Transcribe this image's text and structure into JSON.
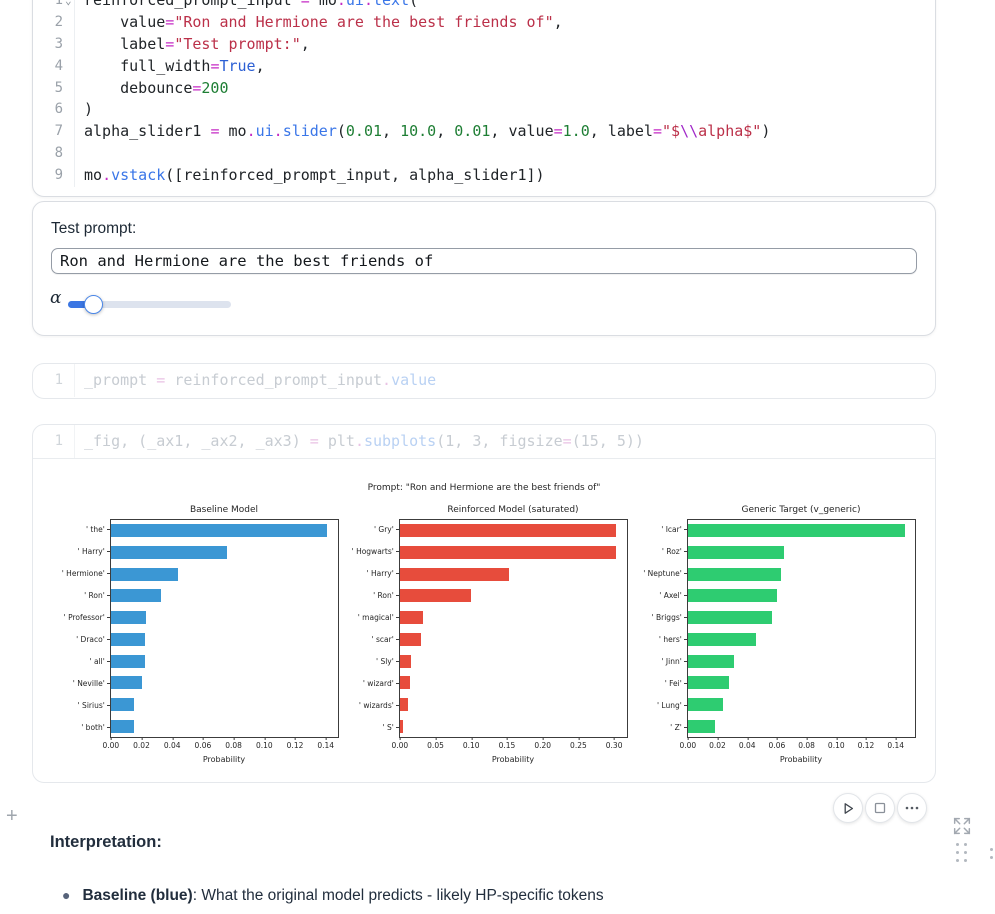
{
  "cells": {
    "cell1": {
      "lines": [
        {
          "n": "1",
          "fold": "⌄",
          "segs": [
            [
              "reinforced_prompt_input ",
              "d"
            ],
            [
              "= ",
              "op"
            ],
            [
              "mo",
              "d"
            ],
            [
              ".",
              "op"
            ],
            [
              "ui",
              "fn"
            ],
            [
              ".",
              "op"
            ],
            [
              "text",
              "fn"
            ],
            [
              "(",
              "d"
            ]
          ]
        },
        {
          "n": "2",
          "segs": [
            [
              "    value",
              "d"
            ],
            [
              "=",
              "op"
            ],
            [
              "\"Ron and Hermione are the best friends of\"",
              "str"
            ],
            [
              ",",
              "d"
            ]
          ]
        },
        {
          "n": "3",
          "segs": [
            [
              "    label",
              "d"
            ],
            [
              "=",
              "op"
            ],
            [
              "\"Test prompt:\"",
              "str"
            ],
            [
              ",",
              "d"
            ]
          ]
        },
        {
          "n": "4",
          "segs": [
            [
              "    full_width",
              "d"
            ],
            [
              "=",
              "op"
            ],
            [
              "True",
              "kw"
            ],
            [
              ",",
              "d"
            ]
          ]
        },
        {
          "n": "5",
          "segs": [
            [
              "    debounce",
              "d"
            ],
            [
              "=",
              "op"
            ],
            [
              "200",
              "num"
            ]
          ]
        },
        {
          "n": "6",
          "segs": [
            [
              ")",
              "d"
            ]
          ]
        },
        {
          "n": "7",
          "segs": [
            [
              "alpha_slider1 ",
              "d"
            ],
            [
              "= ",
              "op"
            ],
            [
              "mo",
              "d"
            ],
            [
              ".",
              "op"
            ],
            [
              "ui",
              "fn"
            ],
            [
              ".",
              "op"
            ],
            [
              "slider",
              "fn"
            ],
            [
              "(",
              "d"
            ],
            [
              "0.01",
              "num"
            ],
            [
              ", ",
              "d"
            ],
            [
              "10.0",
              "num"
            ],
            [
              ", ",
              "d"
            ],
            [
              "0.01",
              "num"
            ],
            [
              ", value",
              "d"
            ],
            [
              "=",
              "op"
            ],
            [
              "1.0",
              "num"
            ],
            [
              ", label",
              "d"
            ],
            [
              "=",
              "op"
            ],
            [
              "\"$",
              "str"
            ],
            [
              "\\\\",
              "esc"
            ],
            [
              "alpha$\"",
              "str"
            ],
            [
              ")",
              "d"
            ]
          ]
        },
        {
          "n": "8",
          "segs": []
        },
        {
          "n": "9",
          "segs": [
            [
              "mo",
              "d"
            ],
            [
              ".",
              "op"
            ],
            [
              "vstack",
              "fn"
            ],
            [
              "([reinforced_prompt_input, alpha_slider1])",
              "d"
            ]
          ]
        }
      ]
    },
    "cell2": {
      "lines": [
        {
          "n": "1",
          "segs": [
            [
              "_prompt ",
              "fd"
            ],
            [
              "= ",
              "fop"
            ],
            [
              "reinforced_prompt_input",
              "fd"
            ],
            [
              ".",
              "fop"
            ],
            [
              "value",
              "ffn"
            ]
          ]
        }
      ]
    },
    "cell3": {
      "lines": [
        {
          "n": "1",
          "segs": [
            [
              "_fig, (_ax1, _ax2, _ax3) ",
              "fd"
            ],
            [
              "= ",
              "fop"
            ],
            [
              "plt",
              "fd"
            ],
            [
              ".",
              "fop"
            ],
            [
              "subplots",
              "ffn"
            ],
            [
              "(1, 3, figsize",
              "fd"
            ],
            [
              "=",
              "fop"
            ],
            [
              "(15, 5))",
              "fd"
            ]
          ]
        }
      ]
    }
  },
  "cell1_output": {
    "label": "Test prompt:",
    "input_value": "Ron and Hermione are the best friends of",
    "slider_label": "α"
  },
  "figure": {
    "suptitle": "Prompt: \"Ron and Hermione are the best friends of\""
  },
  "chart_data": [
    {
      "type": "bar",
      "orientation": "horizontal",
      "title": "Baseline Model",
      "xlabel": "Probability",
      "color": "#3b97d4",
      "categories": [
        "' the'",
        "' Harry'",
        "' Hermione'",
        "' Ron'",
        "' Professor'",
        "' Draco'",
        "' all'",
        "' Neville'",
        "' Sirius'",
        "' both'"
      ],
      "values": [
        0.141,
        0.076,
        0.044,
        0.033,
        0.023,
        0.022,
        0.022,
        0.02,
        0.015,
        0.015
      ],
      "xticks": [
        0,
        0.02,
        0.04,
        0.06,
        0.08,
        0.1,
        0.12,
        0.14
      ],
      "xlim": [
        0,
        0.148
      ]
    },
    {
      "type": "bar",
      "orientation": "horizontal",
      "title": "Reinforced Model (saturated)",
      "xlabel": "Probability",
      "color": "#e74c3c",
      "categories": [
        "' Gry'",
        "' Hogwarts'",
        "' Harry'",
        "' Ron'",
        "' magical'",
        "' scar'",
        "' Sly'",
        "' wizard'",
        "' wizards'",
        "' S'"
      ],
      "values": [
        0.303,
        0.303,
        0.153,
        0.1,
        0.032,
        0.029,
        0.016,
        0.014,
        0.011,
        0.005
      ],
      "xticks": [
        0,
        0.05,
        0.1,
        0.15,
        0.2,
        0.25,
        0.3
      ],
      "xlim": [
        0,
        0.318
      ]
    },
    {
      "type": "bar",
      "orientation": "horizontal",
      "title": "Generic Target (v_generic)",
      "xlabel": "Probability",
      "color": "#2ecc71",
      "categories": [
        "' Icar'",
        "' Roz'",
        "' Neptune'",
        "' Axel'",
        "' Briggs'",
        "' hers'",
        "' Jinn'",
        "' Fei'",
        "' Lung'",
        "' Z'"
      ],
      "values": [
        0.146,
        0.065,
        0.063,
        0.06,
        0.057,
        0.046,
        0.031,
        0.028,
        0.024,
        0.018
      ],
      "xticks": [
        0,
        0.02,
        0.04,
        0.06,
        0.08,
        0.1,
        0.12,
        0.14
      ],
      "xlim": [
        0,
        0.153
      ]
    }
  ],
  "icons": {
    "add_cell": "+",
    "play": "run",
    "stop": "interrupt",
    "more": "more-actions",
    "expand": "expand",
    "drag_handle": "drag-handle"
  },
  "interpretation": {
    "heading": "Interpretation:",
    "bullets": [
      {
        "bold": "Baseline (blue)",
        "text": ": What the original model predicts - likely HP-specific tokens"
      }
    ]
  }
}
